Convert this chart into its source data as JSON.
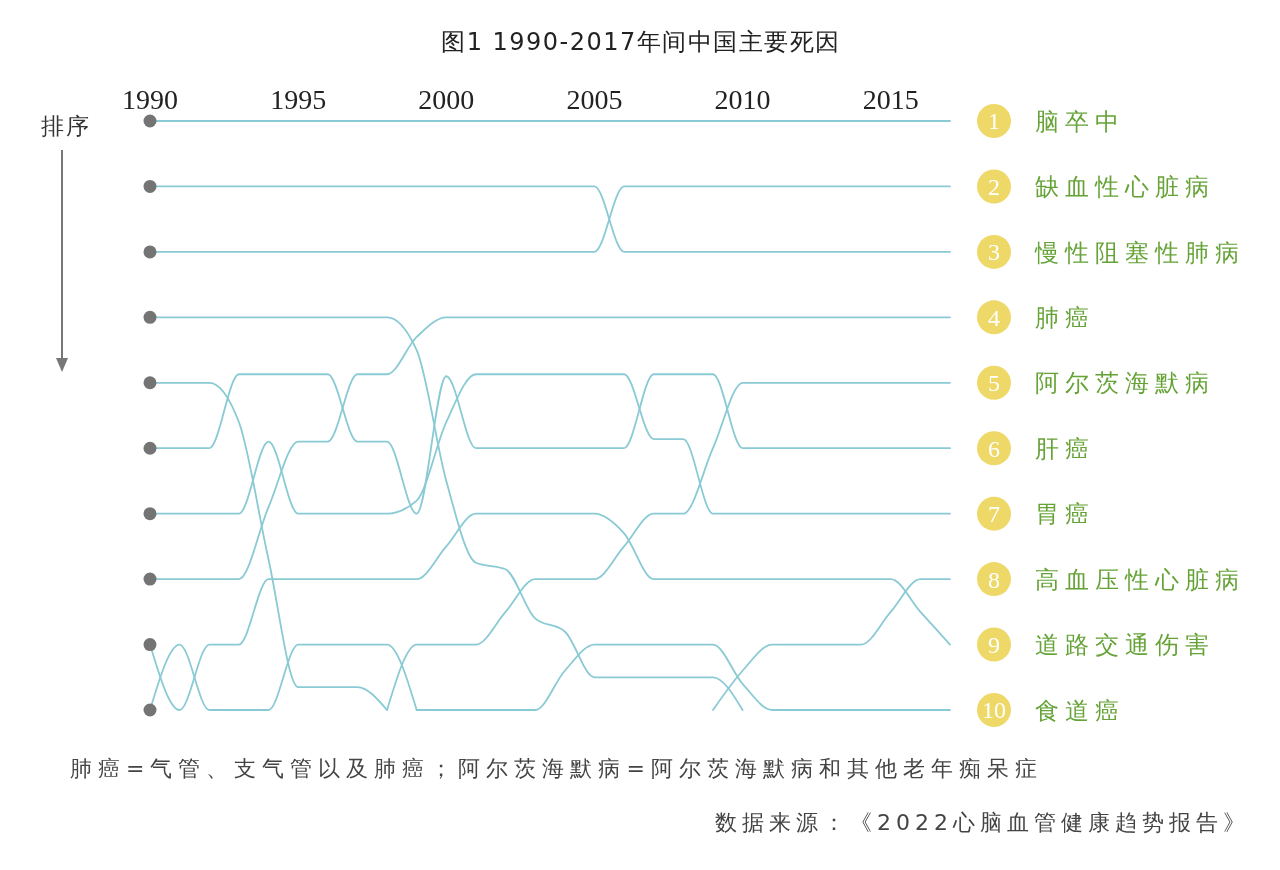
{
  "chart_data": {
    "type": "line",
    "title": "图1 1990-2017年间中国主要死因",
    "ylabel": "排序",
    "categories": [
      "1990",
      null,
      null,
      null,
      null,
      "1995",
      null,
      null,
      null,
      null,
      "2000",
      null,
      null,
      null,
      null,
      "2005",
      null,
      null,
      null,
      null,
      "2010",
      null,
      null,
      null,
      null,
      "2015",
      null,
      null
    ],
    "ylim": [
      10,
      1
    ],
    "yticks": [
      1,
      2,
      3,
      4,
      5,
      6,
      7,
      8,
      9,
      10
    ],
    "series": [
      {
        "name": "脑卒中",
        "color": "#89cad4",
        "values": [
          1,
          1,
          1,
          1,
          1,
          1,
          1,
          1,
          1,
          1,
          1,
          1,
          1,
          1,
          1,
          1,
          1,
          1,
          1,
          1,
          1,
          1,
          1,
          1,
          1,
          1,
          1,
          1
        ]
      },
      {
        "name": "缺血性心脏病",
        "color": "#89cad4",
        "values": [
          3,
          3,
          3,
          3,
          3,
          3,
          3,
          3,
          3,
          3,
          3,
          3,
          3,
          3,
          3,
          3,
          2,
          2,
          2,
          2,
          2,
          2,
          2,
          2,
          2,
          2,
          2,
          2
        ]
      },
      {
        "name": "慢性阻塞性肺病",
        "color": "#89cad4",
        "values": [
          2,
          2,
          2,
          2,
          2,
          2,
          2,
          2,
          2,
          2,
          2,
          2,
          2,
          2,
          2,
          2,
          3,
          3,
          3,
          3,
          3,
          3,
          3,
          3,
          3,
          3,
          3,
          3
        ]
      },
      {
        "name": "肺癌",
        "color": "#89cad4",
        "values": [
          8,
          8,
          8,
          8,
          6.9,
          5.9,
          5.9,
          4.87,
          4.87,
          4.3,
          4,
          4,
          4,
          4,
          4,
          4,
          4,
          4,
          4,
          4,
          4,
          4,
          4,
          4,
          4,
          4,
          4,
          4
        ]
      },
      {
        "name": "阿尔茨海默病",
        "color": "#89cad4",
        "values": [
          null,
          null,
          null,
          null,
          null,
          null,
          null,
          null,
          10,
          9,
          9,
          9,
          8.5,
          8,
          8,
          8,
          7.5,
          7,
          7,
          6,
          5,
          5,
          5,
          5,
          5,
          5,
          5,
          5
        ]
      },
      {
        "name": "肝癌",
        "color": "#89cad4",
        "values": [
          6,
          6,
          6,
          4.87,
          4.87,
          4.87,
          4.87,
          5.9,
          5.9,
          7,
          4.9,
          6,
          6,
          6,
          6,
          6,
          6,
          4.87,
          4.87,
          4.87,
          6,
          6,
          6,
          6,
          6,
          6,
          6,
          6
        ]
      },
      {
        "name": "胃癌",
        "color": "#89cad4",
        "values": [
          7,
          7,
          7,
          7,
          5.9,
          7,
          7,
          7,
          7,
          6.8,
          5.6,
          4.87,
          4.87,
          4.87,
          4.87,
          4.87,
          4.87,
          5.86,
          5.86,
          7,
          7,
          7,
          7,
          7,
          7,
          7,
          7,
          7
        ]
      },
      {
        "name": "高血压性心脏病",
        "color": "#89cad4",
        "values": [
          null,
          null,
          null,
          null,
          null,
          null,
          null,
          null,
          null,
          null,
          null,
          null,
          null,
          null,
          null,
          null,
          null,
          null,
          null,
          10,
          9.4,
          9,
          9,
          9,
          9,
          8.5,
          8,
          8
        ]
      },
      {
        "name": "道路交通伤害",
        "color": "#89cad4",
        "values": [
          9,
          10,
          9,
          9,
          8,
          8,
          8,
          8,
          8,
          8,
          7.5,
          7,
          7,
          7,
          7,
          7,
          7.3,
          8,
          8,
          8,
          8,
          8,
          8,
          8,
          8,
          8,
          8.5,
          9
        ]
      },
      {
        "name": "食道癌",
        "color": "#89cad4",
        "values": [
          null,
          null,
          null,
          null,
          null,
          null,
          null,
          null,
          null,
          10,
          10,
          10,
          10,
          10,
          9.4,
          9,
          9,
          9,
          9,
          9,
          9.6,
          10,
          10,
          10,
          10,
          10,
          10,
          10
        ]
      },
      {
        "color": "#89cad4",
        "values": [
          4,
          4,
          4,
          4,
          4,
          4,
          4,
          4,
          4,
          4.5,
          6.5,
          7.75,
          7.85,
          8.6,
          8.8,
          9.5,
          9.5,
          9.5,
          9.5,
          9.5,
          10,
          null,
          null,
          null,
          null,
          null,
          null,
          null
        ]
      },
      {
        "color": "#89cad4",
        "values": [
          5,
          5,
          5,
          5.6,
          7.7,
          9.65,
          9.65,
          9.65,
          10,
          null,
          null,
          null,
          null,
          null,
          null,
          null,
          null,
          null,
          null,
          null,
          null,
          null,
          null,
          null,
          null,
          null,
          null,
          null
        ]
      },
      {
        "color": "#89cad4",
        "values": [
          10,
          9,
          10,
          10,
          10,
          9,
          9,
          9,
          9,
          10,
          null,
          null,
          null,
          null,
          null,
          null,
          null,
          null,
          null,
          null,
          null,
          null,
          null,
          null,
          null,
          null,
          null,
          null
        ]
      }
    ],
    "annotations": [
      "肺癌=气管、支气管以及肺癌；阿尔茨海默病=阿尔茨海默病和其他老年痴呆症",
      "数据来源：《2022心脑血管健康趋势报告》"
    ]
  }
}
